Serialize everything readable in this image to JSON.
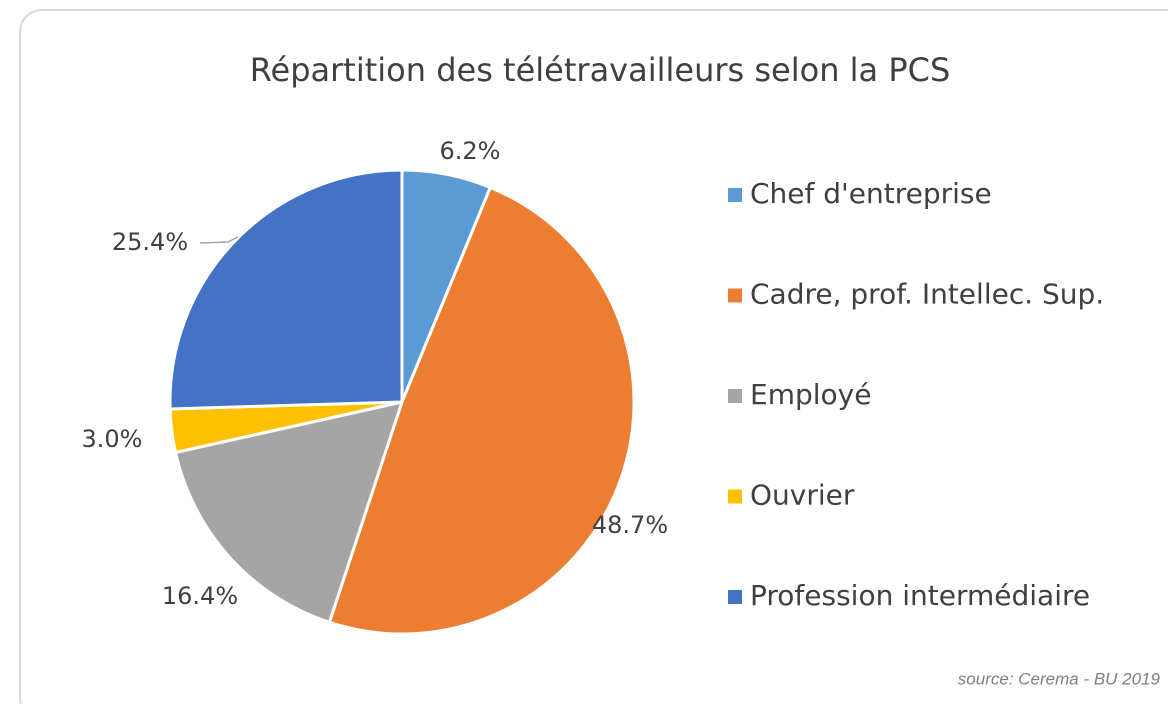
{
  "chart_data": {
    "type": "pie",
    "title": "Répartition des télétravailleurs selon la PCS",
    "categories": [
      "Chef d'entreprise",
      "Cadre, prof. Intellec. Sup.",
      "Employé",
      "Ouvrier",
      "Profession intermédiaire"
    ],
    "values": [
      6.2,
      48.7,
      16.4,
      3,
      25.4
    ],
    "value_labels": [
      "6.2%",
      "48.7%",
      "16.4%",
      "3.0%",
      "25.4%"
    ],
    "colors": [
      "#5b9bd5",
      "#ed7d31",
      "#a5a5a5",
      "#ffc000",
      "#4472c4"
    ],
    "legend": "right",
    "source": "source: Cerema - BU 2019"
  }
}
